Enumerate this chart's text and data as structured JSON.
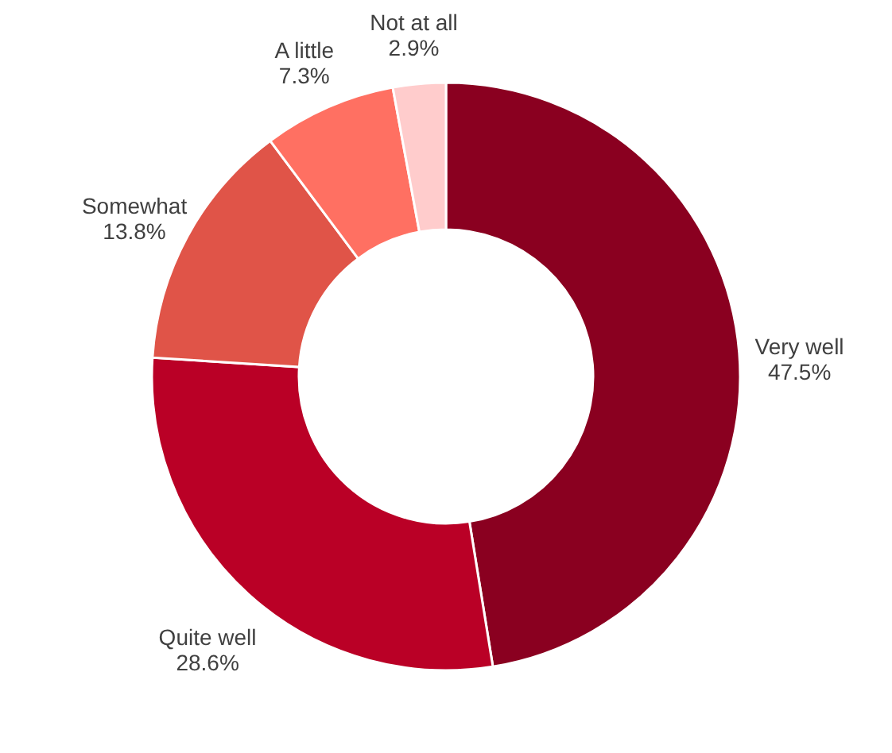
{
  "chart_data": {
    "type": "donut",
    "categories": [
      "Very well",
      "Quite well",
      "Somewhat",
      "A little",
      "Not at all"
    ],
    "values": [
      47.5,
      28.6,
      13.8,
      7.3,
      2.9
    ],
    "value_labels": [
      "47.5%",
      "28.6%",
      "13.8%",
      "7.3%",
      "2.9%"
    ],
    "colors": [
      "#8a0020",
      "#ba0026",
      "#e05448",
      "#ff7062",
      "#ffcccc"
    ],
    "legend": false
  }
}
